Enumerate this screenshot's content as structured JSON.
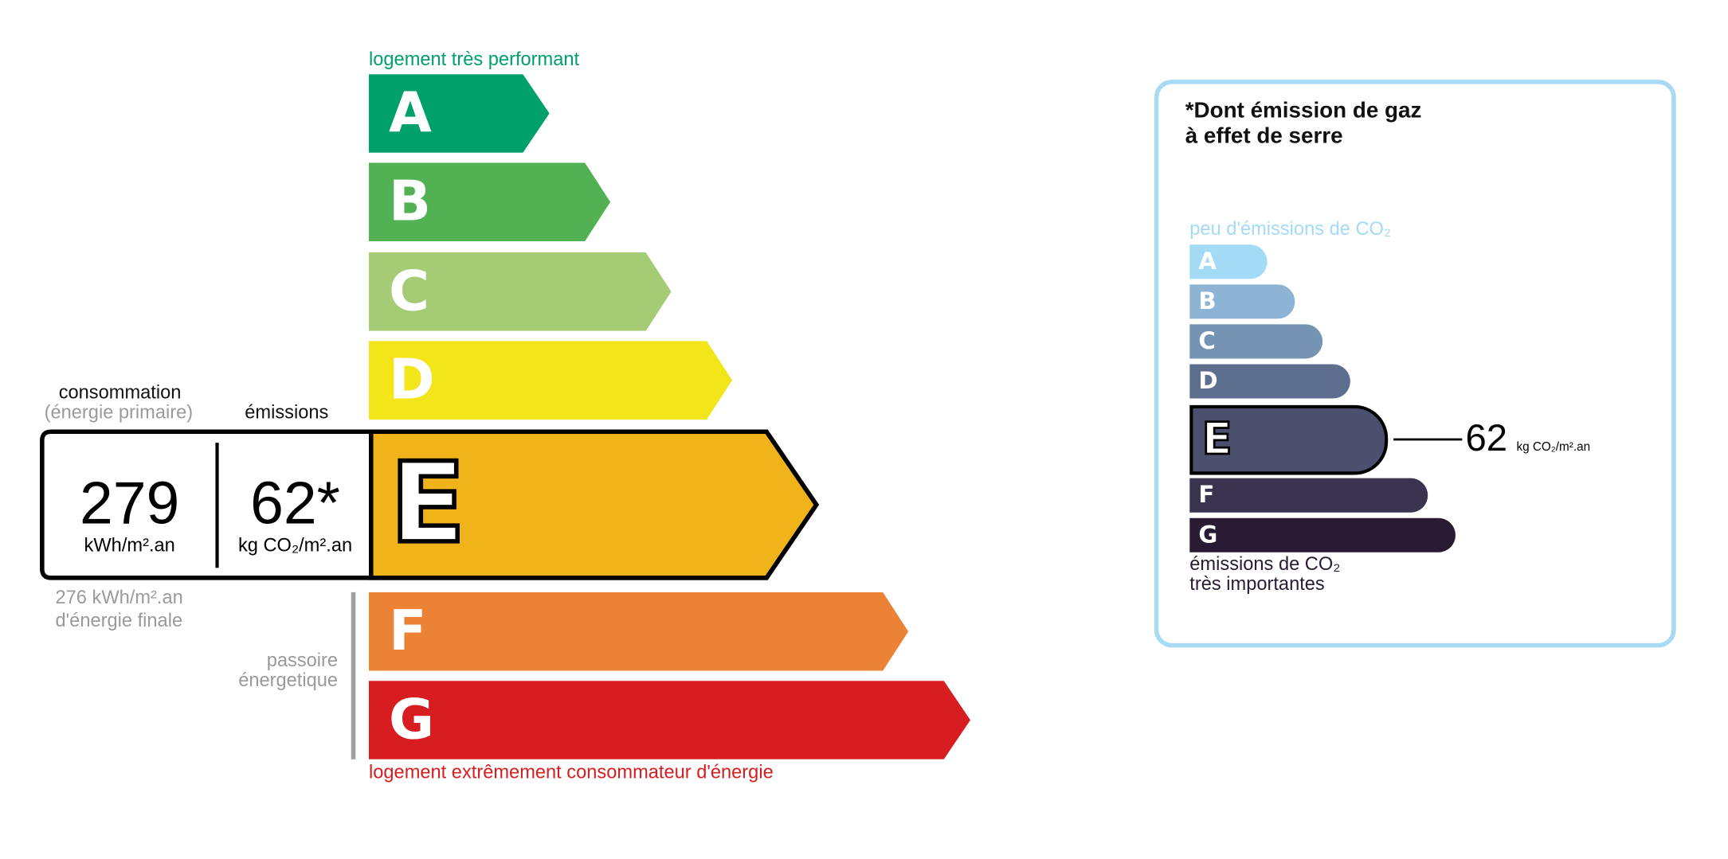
{
  "energy_label": {
    "top_caption": "logement très performant",
    "bottom_caption": "logement extrêmement consommateur d'énergie",
    "classes": [
      {
        "letter": "A",
        "color": "#00a06b"
      },
      {
        "letter": "B",
        "color": "#52b153"
      },
      {
        "letter": "C",
        "color": "#a5cc74"
      },
      {
        "letter": "D",
        "color": "#f2e61b"
      },
      {
        "letter": "E",
        "color": "#f0b41a"
      },
      {
        "letter": "F",
        "color": "#eb8235"
      },
      {
        "letter": "G",
        "color": "#d71d1f"
      }
    ],
    "current_class": "E",
    "consumption_header": "consommation",
    "consumption_subheader": "(énergie primaire)",
    "emissions_header": "émissions",
    "consumption_value": "279",
    "consumption_unit": "kWh/m².an",
    "emissions_value": "62*",
    "emissions_unit": "kg CO₂/m².an",
    "final_energy_line1": "276 kWh/m².an",
    "final_energy_line2": "d'énergie finale",
    "passoire_line1": "passoire",
    "passoire_line2": "énergetique"
  },
  "ges_label": {
    "title_line1": "*Dont émission de gaz",
    "title_line2": "à effet de serre",
    "top_caption": "peu d'émissions de CO₂",
    "bottom_caption_line1": "émissions de CO₂",
    "bottom_caption_line2": "très importantes",
    "classes": [
      {
        "letter": "A",
        "color": "#a3dbf7"
      },
      {
        "letter": "B",
        "color": "#8db4d4"
      },
      {
        "letter": "C",
        "color": "#7594b4"
      },
      {
        "letter": "D",
        "color": "#5e6e8f"
      },
      {
        "letter": "E",
        "color": "#4d4f6f"
      },
      {
        "letter": "F",
        "color": "#3a3451"
      },
      {
        "letter": "G",
        "color": "#2a1b35"
      }
    ],
    "current_class": "E",
    "value": "62",
    "unit": "kg CO₂/m².an",
    "border_color": "#a6daf5"
  }
}
